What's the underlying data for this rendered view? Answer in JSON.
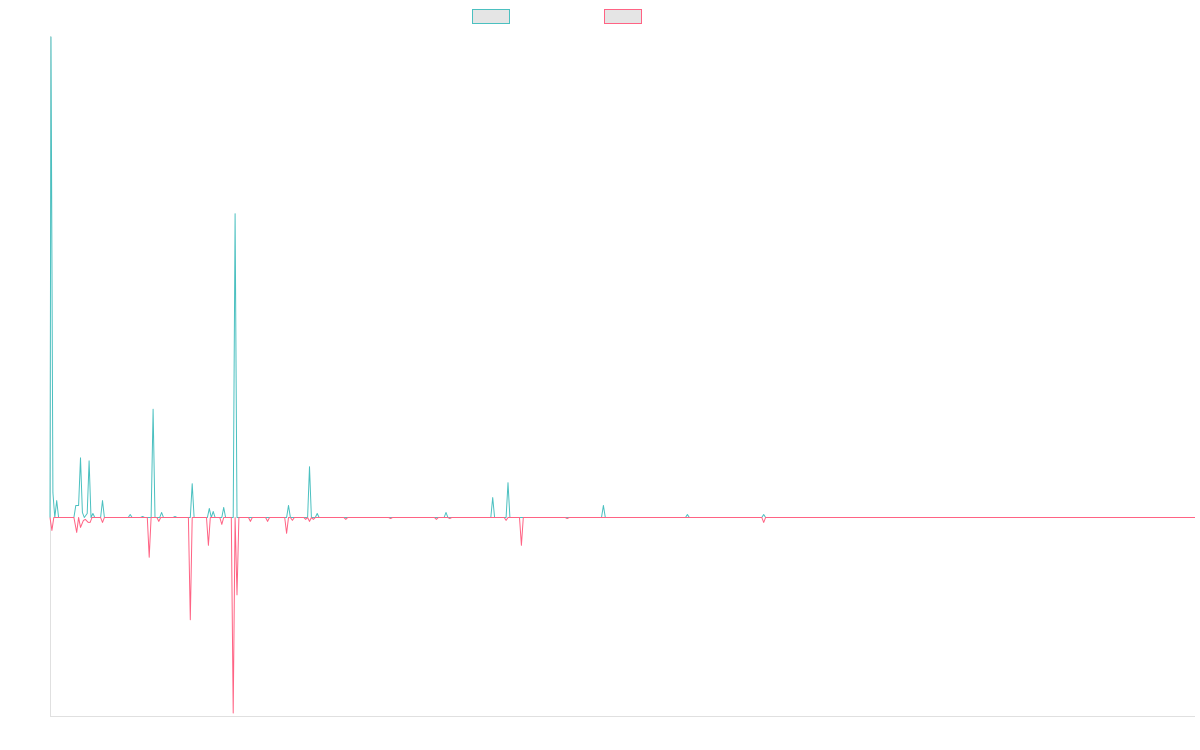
{
  "colors": {
    "positive": "#4bc0c0",
    "negative": "#ff6384",
    "axis": "#e0e0e0",
    "legend_fill": "#e5e5e5"
  },
  "legend": [
    {
      "label": "",
      "color": "#4bc0c0"
    },
    {
      "label": "",
      "color": "#ff6384"
    }
  ],
  "chart_data": {
    "type": "line",
    "title": "",
    "xlabel": "",
    "ylabel": "",
    "grid": false,
    "legend_position": "top",
    "xlim": [
      0,
      1200
    ],
    "ylim": [
      -200,
      485
    ],
    "series": [
      {
        "color": "#4bc0c0",
        "points": [
          [
            0,
            0
          ],
          [
            1,
            484
          ],
          [
            3,
            25
          ],
          [
            5,
            0
          ],
          [
            7,
            17
          ],
          [
            9,
            0
          ],
          [
            25,
            0
          ],
          [
            27,
            12
          ],
          [
            30,
            12
          ],
          [
            32,
            60
          ],
          [
            34,
            5
          ],
          [
            36,
            0
          ],
          [
            39,
            4
          ],
          [
            41,
            57
          ],
          [
            43,
            0
          ],
          [
            45,
            4
          ],
          [
            47,
            0
          ],
          [
            53,
            0
          ],
          [
            55,
            17
          ],
          [
            57,
            0
          ],
          [
            82,
            0
          ],
          [
            84,
            3
          ],
          [
            86,
            0
          ],
          [
            95,
            0
          ],
          [
            97,
            1
          ],
          [
            99,
            0
          ],
          [
            106,
            0
          ],
          [
            108,
            109
          ],
          [
            110,
            0
          ],
          [
            115,
            0
          ],
          [
            117,
            5
          ],
          [
            119,
            0
          ],
          [
            129,
            0
          ],
          [
            131,
            1
          ],
          [
            133,
            0
          ],
          [
            147,
            0
          ],
          [
            149,
            34
          ],
          [
            151,
            0
          ],
          [
            165,
            0
          ],
          [
            167,
            9
          ],
          [
            169,
            0
          ],
          [
            171,
            6
          ],
          [
            173,
            0
          ],
          [
            180,
            0
          ],
          [
            182,
            10
          ],
          [
            184,
            0
          ],
          [
            192,
            0
          ],
          [
            194,
            306
          ],
          [
            196,
            0
          ],
          [
            248,
            0
          ],
          [
            250,
            12
          ],
          [
            252,
            0
          ],
          [
            261,
            0
          ],
          [
            263,
            0
          ],
          [
            270,
            0
          ],
          [
            272,
            51
          ],
          [
            274,
            0
          ],
          [
            278,
            0
          ],
          [
            280,
            4
          ],
          [
            282,
            0
          ],
          [
            284,
            0
          ],
          [
            286,
            0
          ],
          [
            288,
            0
          ],
          [
            300,
            0
          ],
          [
            303,
            0
          ],
          [
            305,
            0
          ],
          [
            307,
            0
          ],
          [
            311,
            0
          ],
          [
            313,
            0
          ],
          [
            315,
            0
          ],
          [
            374,
            0
          ],
          [
            376,
            0
          ],
          [
            378,
            0
          ],
          [
            413,
            0
          ],
          [
            415,
            5
          ],
          [
            417,
            0
          ],
          [
            462,
            0
          ],
          [
            464,
            20
          ],
          [
            466,
            0
          ],
          [
            478,
            0
          ],
          [
            480,
            35
          ],
          [
            482,
            0
          ],
          [
            578,
            0
          ],
          [
            580,
            12
          ],
          [
            582,
            0
          ],
          [
            666,
            0
          ],
          [
            668,
            3
          ],
          [
            670,
            0
          ],
          [
            746,
            0
          ],
          [
            748,
            3
          ],
          [
            750,
            0
          ],
          [
            1200,
            0
          ]
        ]
      },
      {
        "color": "#ff6384",
        "points": [
          [
            0,
            0
          ],
          [
            2,
            -13
          ],
          [
            4,
            0
          ],
          [
            25,
            0
          ],
          [
            28,
            -15
          ],
          [
            30,
            0
          ],
          [
            32,
            -10
          ],
          [
            35,
            -3
          ],
          [
            37,
            -2
          ],
          [
            40,
            -5
          ],
          [
            42,
            -5
          ],
          [
            44,
            0
          ],
          [
            53,
            0
          ],
          [
            55,
            -5
          ],
          [
            57,
            0
          ],
          [
            82,
            0
          ],
          [
            85,
            0
          ],
          [
            87,
            0
          ],
          [
            102,
            0
          ],
          [
            104,
            -40
          ],
          [
            106,
            0
          ],
          [
            109,
            0
          ],
          [
            112,
            0
          ],
          [
            114,
            -4
          ],
          [
            116,
            0
          ],
          [
            123,
            0
          ],
          [
            125,
            0
          ],
          [
            127,
            0
          ],
          [
            145,
            0
          ],
          [
            147,
            -103
          ],
          [
            149,
            0
          ],
          [
            164,
            0
          ],
          [
            166,
            -28
          ],
          [
            168,
            0
          ],
          [
            178,
            0
          ],
          [
            180,
            -7
          ],
          [
            182,
            0
          ],
          [
            190,
            0
          ],
          [
            192,
            -197
          ],
          [
            194,
            0
          ],
          [
            196,
            -78
          ],
          [
            198,
            0
          ],
          [
            208,
            0
          ],
          [
            210,
            -4
          ],
          [
            212,
            0
          ],
          [
            226,
            0
          ],
          [
            228,
            -4
          ],
          [
            230,
            0
          ],
          [
            246,
            0
          ],
          [
            248,
            -16
          ],
          [
            250,
            0
          ],
          [
            252,
            0
          ],
          [
            254,
            -3
          ],
          [
            256,
            0
          ],
          [
            266,
            0
          ],
          [
            268,
            -2
          ],
          [
            270,
            0
          ],
          [
            272,
            -4
          ],
          [
            274,
            0
          ],
          [
            276,
            -2
          ],
          [
            278,
            0
          ],
          [
            308,
            0
          ],
          [
            310,
            -2
          ],
          [
            312,
            0
          ],
          [
            355,
            0
          ],
          [
            357,
            -1
          ],
          [
            359,
            0
          ],
          [
            403,
            0
          ],
          [
            405,
            -2
          ],
          [
            407,
            0
          ],
          [
            417,
            0
          ],
          [
            419,
            -1
          ],
          [
            421,
            0
          ],
          [
            476,
            0
          ],
          [
            478,
            -3
          ],
          [
            480,
            0
          ],
          [
            492,
            0
          ],
          [
            494,
            -28
          ],
          [
            496,
            0
          ],
          [
            540,
            0
          ],
          [
            542,
            -1
          ],
          [
            544,
            0
          ],
          [
            746,
            0
          ],
          [
            748,
            -5
          ],
          [
            750,
            0
          ],
          [
            1200,
            0
          ]
        ]
      }
    ]
  }
}
